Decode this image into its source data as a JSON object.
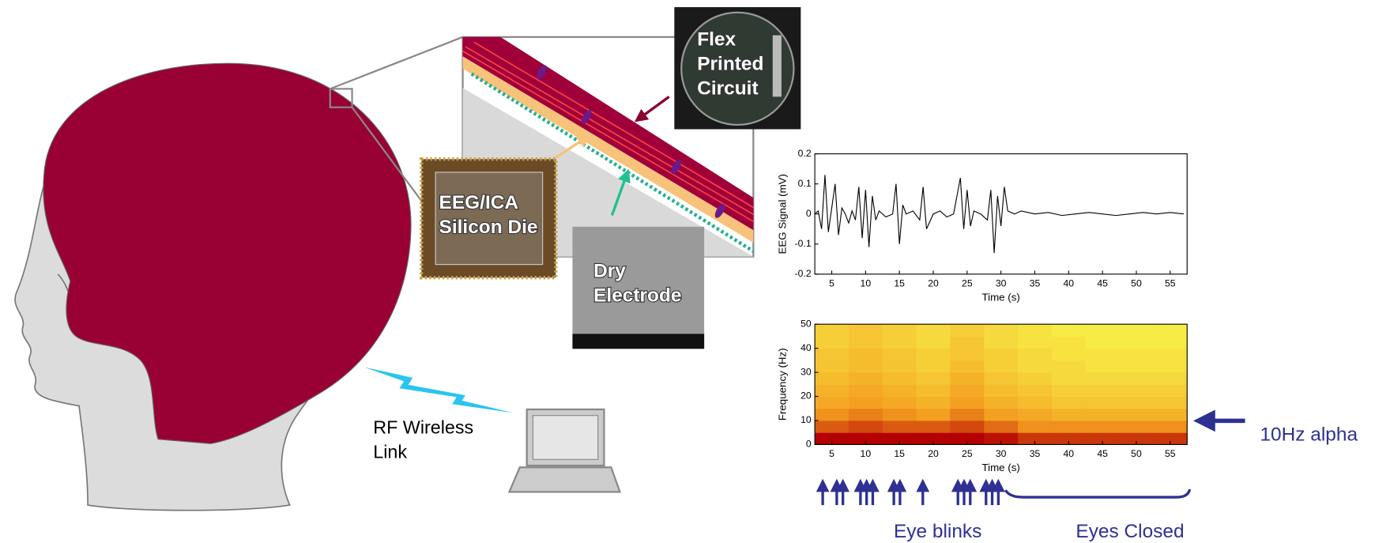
{
  "diagram": {
    "flex_label": [
      "Flex",
      "Printed",
      "Circuit"
    ],
    "die_label": [
      "EEG/ICA",
      "Silicon Die"
    ],
    "electrode_label": [
      "Dry",
      "Electrode"
    ],
    "rf_label": [
      "RF Wireless",
      "Link"
    ],
    "alpha_label": "10Hz alpha",
    "blinks_label": "Eye blinks",
    "closed_label": "Eyes Closed"
  },
  "chart_data": [
    {
      "type": "line",
      "xlabel": "Time (s)",
      "ylabel": "EEG Signal (mV)",
      "x": [
        2.5,
        3,
        3.5,
        4,
        4.5,
        5,
        5.5,
        6,
        6.5,
        7,
        7.5,
        8,
        8.5,
        9,
        9.5,
        10,
        10.5,
        11,
        11.5,
        12,
        13,
        14,
        14.5,
        15,
        15.5,
        16,
        17,
        18,
        18.5,
        19,
        20,
        21,
        22,
        23,
        24,
        24.5,
        25,
        25.5,
        26,
        27,
        28,
        28.5,
        29,
        29.5,
        30,
        30.5,
        31,
        32,
        33,
        35,
        37,
        39,
        41,
        43,
        45,
        47,
        49,
        51,
        53,
        55,
        57
      ],
      "series": [
        {
          "color": "#000000",
          "values": [
            0,
            0.01,
            -0.05,
            0.13,
            -0.06,
            0.02,
            0.1,
            -0.07,
            0.02,
            0,
            -0.03,
            0.01,
            -0.02,
            0.09,
            -0.08,
            0.08,
            -0.11,
            0.06,
            -0.02,
            0.01,
            -0.01,
            0,
            0.1,
            -0.1,
            0.03,
            0,
            0.01,
            -0.02,
            0.09,
            -0.05,
            0,
            0.01,
            -0.01,
            0,
            0.12,
            -0.05,
            0.08,
            -0.04,
            0.01,
            0,
            -0.02,
            0.08,
            -0.13,
            0.06,
            -0.04,
            0.09,
            0.01,
            0,
            0.01,
            0,
            0.005,
            -0.005,
            0,
            0.005,
            0,
            -0.005,
            0,
            0.005,
            0,
            0.005,
            0
          ]
        }
      ],
      "xlim": [
        2.5,
        57.5
      ],
      "ylim": [
        -0.2,
        0.2
      ],
      "xticks": [
        5,
        10,
        15,
        20,
        25,
        30,
        35,
        40,
        45,
        50,
        55
      ],
      "yticks": [
        -0.2,
        -0.1,
        0,
        0.1,
        0.2
      ]
    },
    {
      "type": "heatmap",
      "xlabel": "Time (s)",
      "ylabel": "Frequency (Hz)",
      "x": [
        5,
        10,
        15,
        20,
        25,
        30,
        35,
        40,
        45,
        50,
        55
      ],
      "y": [
        2.5,
        7.5,
        12.5,
        17.5,
        22.5,
        27.5,
        32.5,
        37.5,
        42.5,
        47.5
      ],
      "values": [
        [
          95,
          95,
          95,
          95,
          95,
          90,
          80,
          80,
          80,
          80,
          80
        ],
        [
          70,
          75,
          70,
          70,
          75,
          65,
          55,
          55,
          55,
          55,
          55
        ],
        [
          55,
          60,
          55,
          50,
          60,
          50,
          45,
          40,
          40,
          40,
          40
        ],
        [
          45,
          50,
          45,
          40,
          50,
          40,
          35,
          30,
          30,
          30,
          30
        ],
        [
          40,
          45,
          40,
          35,
          45,
          35,
          30,
          25,
          25,
          25,
          25
        ],
        [
          35,
          40,
          35,
          30,
          40,
          30,
          25,
          20,
          20,
          20,
          20
        ],
        [
          30,
          35,
          30,
          25,
          35,
          25,
          20,
          20,
          15,
          15,
          15
        ],
        [
          30,
          35,
          30,
          25,
          30,
          25,
          20,
          15,
          15,
          15,
          15
        ],
        [
          25,
          30,
          25,
          20,
          30,
          20,
          15,
          15,
          10,
          10,
          10
        ],
        [
          25,
          30,
          25,
          20,
          25,
          20,
          15,
          10,
          10,
          10,
          10
        ]
      ],
      "colormap": [
        "#f7ec45",
        "#f39a1e",
        "#b40000"
      ],
      "xlim": [
        2.5,
        57.5
      ],
      "ylim": [
        0,
        50
      ],
      "xticks": [
        5,
        10,
        15,
        20,
        25,
        30,
        35,
        40,
        45,
        50,
        55
      ],
      "yticks": [
        0,
        10,
        20,
        30,
        40,
        50
      ]
    }
  ]
}
